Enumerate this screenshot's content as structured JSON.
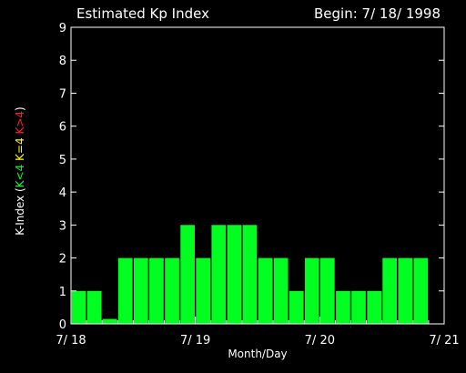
{
  "chart_data": {
    "type": "bar",
    "title": "Estimated Kp Index",
    "subtitle": "Begin: 7/ 18/ 1998",
    "xlabel": "Month/Day",
    "ylabel": {
      "prefix": "K-Index (",
      "green": "K<4",
      "yellow": "K=4",
      "red": "K>4",
      "suffix": ")"
    },
    "ylim": [
      0,
      9
    ],
    "yticks": [
      "0",
      "1",
      "2",
      "3",
      "4",
      "5",
      "6",
      "7",
      "8",
      "9"
    ],
    "xlim": [
      0,
      24
    ],
    "xticks": [
      {
        "value": 0,
        "label": "7/ 18"
      },
      {
        "value": 8,
        "label": "7/ 19"
      },
      {
        "value": 16,
        "label": "7/ 20"
      },
      {
        "value": 24,
        "label": "7/ 21"
      }
    ],
    "bar_width": 0.92,
    "values": [
      1,
      1,
      0.15,
      2,
      2,
      2,
      2,
      3,
      2,
      3,
      3,
      3,
      2,
      2,
      1,
      2,
      2,
      1,
      1,
      1,
      2,
      2,
      2
    ],
    "colors": {
      "background": "#000000",
      "axes": "#ffffff",
      "text": "#ffffff",
      "bar_low": "#00ff20",
      "bar_mid": "#ffff00",
      "bar_high": "#ff2020"
    }
  }
}
